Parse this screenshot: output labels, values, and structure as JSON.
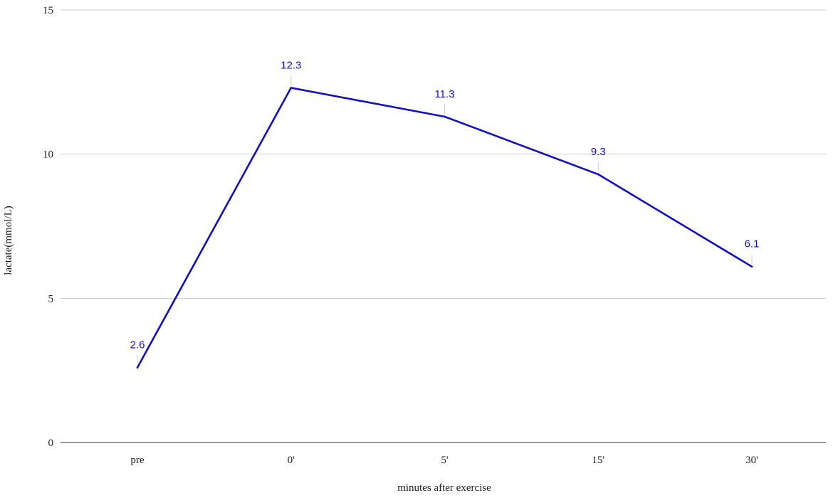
{
  "chart_data": {
    "type": "line",
    "title": "",
    "xlabel": "minutes after exercise",
    "ylabel": "lactate(mmol/L)",
    "categories": [
      "pre",
      "0'",
      "5'",
      "15'",
      "30'"
    ],
    "series": [
      {
        "values": [
          2.6,
          12.3,
          11.3,
          9.3,
          6.1
        ],
        "data_labels": [
          "2.6",
          "12.3",
          "11.3",
          "9.3",
          "6.1"
        ],
        "color": "#1010c0"
      }
    ],
    "ylim": [
      0,
      15
    ],
    "yticks": [
      0,
      5,
      10,
      15
    ],
    "ytick_labels": [
      "0",
      "5",
      "10",
      "15"
    ],
    "grid": true,
    "legend": "none"
  }
}
